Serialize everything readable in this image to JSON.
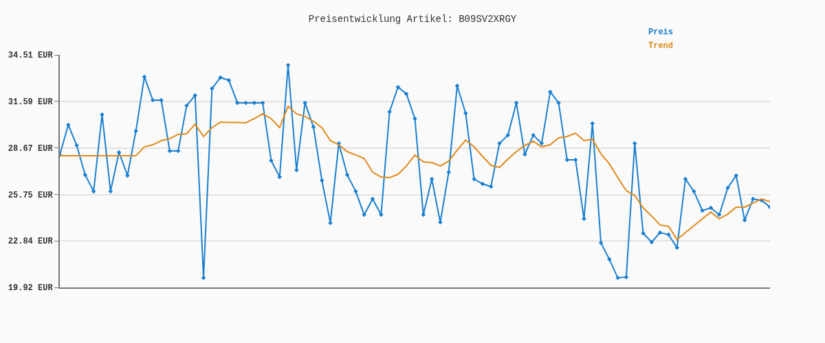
{
  "chart_data": {
    "type": "line",
    "title": "Preisentwicklung Artikel: B09SV2XRGY",
    "categories": [
      null,
      null,
      null,
      null,
      null,
      null,
      null,
      null,
      null,
      null,
      null,
      null,
      null,
      null,
      null,
      null,
      null,
      null,
      null,
      null,
      null,
      null,
      null,
      null,
      null,
      null,
      null,
      null,
      null,
      null,
      null,
      null,
      null,
      null,
      null,
      null,
      null,
      null,
      null,
      null,
      null,
      null,
      null,
      null,
      null,
      null,
      null,
      null,
      null,
      null,
      null,
      null,
      null,
      null,
      null,
      null,
      null,
      null,
      null,
      null,
      null,
      null,
      null,
      null,
      null,
      null,
      null,
      null,
      null,
      null,
      null,
      null,
      null,
      null,
      null,
      null,
      null,
      null,
      null,
      null,
      null,
      null,
      null,
      null,
      null
    ],
    "series": [
      {
        "name": "Preis",
        "color": "#1a7fcf",
        "marker": "diamond",
        "values": [
          28.23,
          30.12,
          28.83,
          26.98,
          25.95,
          30.77,
          25.95,
          28.4,
          26.94,
          29.73,
          33.13,
          31.67,
          31.67,
          28.48,
          28.48,
          31.33,
          31.97,
          20.52,
          32.4,
          33.09,
          32.92,
          31.5,
          31.5,
          31.5,
          31.5,
          27.88,
          26.85,
          33.86,
          27.28,
          31.5,
          29.99,
          26.63,
          23.97,
          28.96,
          26.98,
          25.95,
          24.48,
          25.47,
          24.48,
          30.94,
          32.49,
          32.06,
          30.51,
          24.48,
          26.72,
          24.01,
          27.15,
          32.57,
          30.85,
          26.72,
          26.42,
          26.25,
          28.96,
          29.47,
          31.5,
          28.27,
          29.47,
          28.96,
          32.19,
          31.5,
          27.92,
          27.92,
          24.22,
          30.21,
          22.72,
          21.68,
          20.52,
          20.57,
          28.96,
          23.32,
          22.76,
          23.36,
          23.23,
          22.42,
          26.72,
          25.95,
          24.74,
          24.91,
          24.48,
          26.16,
          26.94,
          24.14,
          25.47,
          25.39,
          24.96
        ]
      },
      {
        "name": "Trend",
        "color": "#e08a1e",
        "marker": "none",
        "values": [
          28.18,
          28.18,
          28.18,
          28.18,
          28.18,
          28.18,
          28.18,
          28.18,
          28.18,
          28.18,
          28.74,
          28.87,
          29.13,
          29.26,
          29.52,
          29.56,
          30.16,
          29.39,
          29.95,
          30.29,
          30.27,
          30.27,
          30.25,
          30.51,
          30.81,
          30.51,
          29.95,
          31.28,
          30.81,
          30.64,
          30.34,
          29.95,
          29.13,
          28.87,
          28.44,
          28.23,
          28.01,
          27.15,
          26.85,
          26.81,
          27.02,
          27.54,
          28.23,
          27.8,
          27.75,
          27.54,
          27.84,
          28.53,
          29.17,
          28.74,
          28.14,
          27.58,
          27.45,
          27.97,
          28.44,
          28.83,
          29.09,
          28.74,
          28.87,
          29.3,
          29.39,
          29.6,
          29.13,
          29.22,
          28.31,
          27.67,
          26.81,
          25.99,
          25.69,
          24.91,
          24.4,
          23.84,
          23.75,
          22.93,
          23.36,
          23.79,
          24.22,
          24.65,
          24.22,
          24.52,
          24.96,
          24.96,
          25.21,
          25.47,
          25.3
        ]
      }
    ],
    "ylim": [
      19.92,
      34.51
    ],
    "yticks": [
      {
        "value": 19.92,
        "label": "19.92 EUR"
      },
      {
        "value": 22.84,
        "label": "22.84 EUR"
      },
      {
        "value": 25.75,
        "label": "25.75 EUR"
      },
      {
        "value": 28.67,
        "label": "28.67 EUR"
      },
      {
        "value": 31.59,
        "label": "31.59 EUR"
      },
      {
        "value": 34.51,
        "label": "34.51 EUR"
      }
    ],
    "grid": "y",
    "legend": "top right",
    "tick_labels": "y",
    "line_style": "solid"
  }
}
